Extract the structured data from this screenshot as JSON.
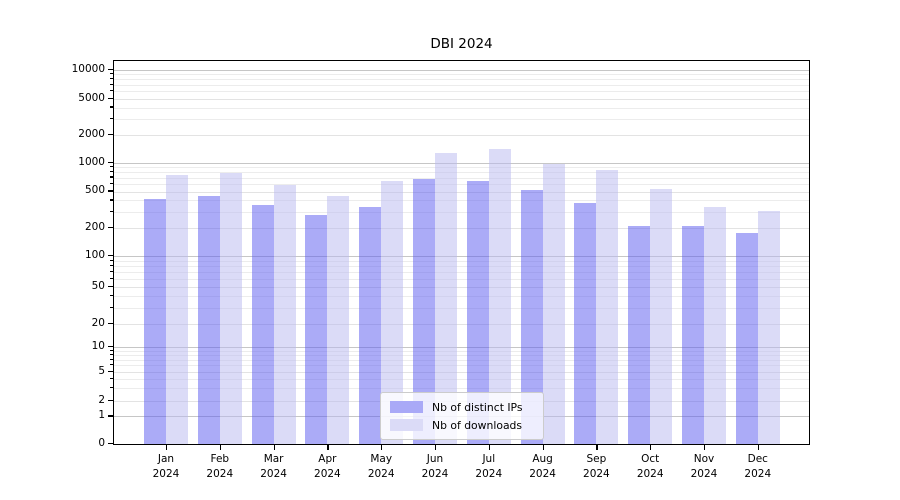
{
  "chart_data": {
    "type": "bar",
    "title": "DBI 2024",
    "categories": [
      "Jan",
      "Feb",
      "Mar",
      "Apr",
      "May",
      "Jun",
      "Jul",
      "Aug",
      "Sep",
      "Oct",
      "Nov",
      "Dec"
    ],
    "category_year": "2024",
    "series": [
      {
        "name": "Nb of distinct IPs",
        "color": "#a9a9f7",
        "color_rgba": "rgba(87,87,239,0.5)",
        "values": [
          410,
          450,
          355,
          275,
          335,
          670,
          640,
          525,
          375,
          210,
          210,
          175
        ]
      },
      {
        "name": "Nb of downloads",
        "color": "#dbdbf7",
        "color_rgba": "rgba(183,183,239,0.5)",
        "values": [
          740,
          775,
          590,
          445,
          640,
          1275,
          1430,
          980,
          830,
          530,
          335,
          310
        ]
      }
    ],
    "xlabel": "",
    "ylabel": "",
    "y_axis": {
      "scale": "log-with-zero",
      "ticks": [
        0,
        1,
        2,
        5,
        10,
        20,
        50,
        100,
        200,
        500,
        1000,
        2000,
        5000,
        10000
      ],
      "ylim": [
        0,
        12500
      ],
      "major_gridline_values": [
        1,
        10,
        100,
        1000,
        10000
      ]
    },
    "grid": true,
    "legend_position": "lower center"
  },
  "colors": {
    "background": "#ffffff",
    "axis_frame": "#000000",
    "major_grid": "#c6c6c6",
    "minor_grid": "#ececec",
    "legend_border": "#cccccc"
  }
}
